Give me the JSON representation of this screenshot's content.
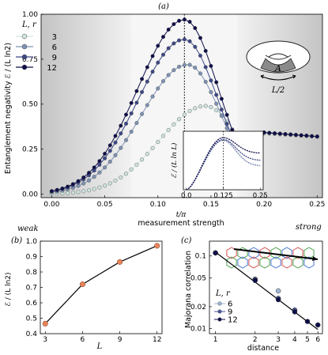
{
  "chart_data": [
    {
      "panel": "a",
      "type": "line",
      "title": "(a)",
      "xlabel": "t/π",
      "xlabel2": "measurement strength",
      "ylabel": "Entanglement negativity ℰ / (L ln2)",
      "xlim": [
        -0.01,
        0.255
      ],
      "ylim": [
        -0.02,
        1.0
      ],
      "xticks": [
        "0.00",
        "0.05",
        "0.10",
        "0.15",
        "0.20",
        "0.25"
      ],
      "yticks": [
        "0.00",
        "0.25",
        "0.50",
        "0.75",
        "1.00"
      ],
      "dotted_line_x": 0.125,
      "weak_label": "weak",
      "strong_label": "strong",
      "legend_title": "L, r",
      "legend_placement": "upper-left",
      "series": [
        {
          "name": "3",
          "color": "#d0e4e0",
          "peak": 0.49,
          "peak_x": 0.145
        },
        {
          "name": "6",
          "color": "#7f93b5",
          "peak": 0.72,
          "peak_x": 0.128
        },
        {
          "name": "9",
          "color": "#3d4886",
          "peak": 0.86,
          "peak_x": 0.125
        },
        {
          "name": "12",
          "color": "#0e0e4a",
          "peak": 0.97,
          "peak_x": 0.125
        }
      ],
      "series_end_value": 0.32,
      "inset_diagram": {
        "region_label": "A",
        "length_label": "L/2"
      },
      "inset": {
        "ylabel": "ℰ / (L ln L)",
        "xticks": [
          "0.0",
          "0.125",
          "0.25"
        ],
        "xlim": [
          -0.01,
          0.26
        ],
        "ylim": [
          0.0,
          0.32
        ],
        "peaks": [
          0.27,
          0.275,
          0.285
        ],
        "ends": [
          0.13,
          0.16,
          0.2
        ]
      }
    },
    {
      "panel": "b",
      "type": "scatter",
      "title": "(b)",
      "xlabel": "L",
      "ylabel": "ℰ / (L ln2)",
      "xlim": [
        2.6,
        12.4
      ],
      "ylim": [
        0.4,
        1.0
      ],
      "xticks": [
        "3",
        "6",
        "9",
        "12"
      ],
      "yticks": [
        "0.4",
        "0.5",
        "0.6",
        "0.7",
        "0.8",
        "0.9",
        "1.0"
      ],
      "x": [
        3,
        6,
        9,
        12
      ],
      "values": [
        0.465,
        0.72,
        0.865,
        0.97
      ],
      "point_color": "#e8845a"
    },
    {
      "panel": "c",
      "type": "scatter",
      "title": "(c)",
      "xlabel": "distance",
      "ylabel": "Majorana correlation",
      "xscale": "log",
      "yscale": "log",
      "xlim": [
        0.9,
        6.5
      ],
      "ylim": [
        0.0085,
        0.16
      ],
      "xticks": [
        "1",
        "2",
        "3",
        "4",
        "5",
        "6"
      ],
      "yticks": [
        "0.01",
        "0.02",
        "0.05",
        "0.1"
      ],
      "legend_title": "L, r",
      "legend_placement": "lower-left",
      "series": [
        {
          "name": "6",
          "color": "#9fb8d8",
          "x": [
            1,
            2,
            3
          ],
          "values": [
            0.11,
            0.048,
            0.033
          ]
        },
        {
          "name": "9",
          "color": "#4a5a9a",
          "x": [
            1,
            2,
            3,
            4
          ],
          "values": [
            0.11,
            0.047,
            0.026,
            0.018
          ]
        },
        {
          "name": "12",
          "color": "#0e0e4a",
          "x": [
            1,
            2,
            3,
            4,
            5,
            6
          ],
          "values": [
            0.11,
            0.046,
            0.025,
            0.017,
            0.0125,
            0.0112
          ]
        }
      ],
      "fit_line": {
        "x": [
          1,
          6
        ],
        "values": [
          0.113,
          0.0097
        ]
      }
    }
  ]
}
